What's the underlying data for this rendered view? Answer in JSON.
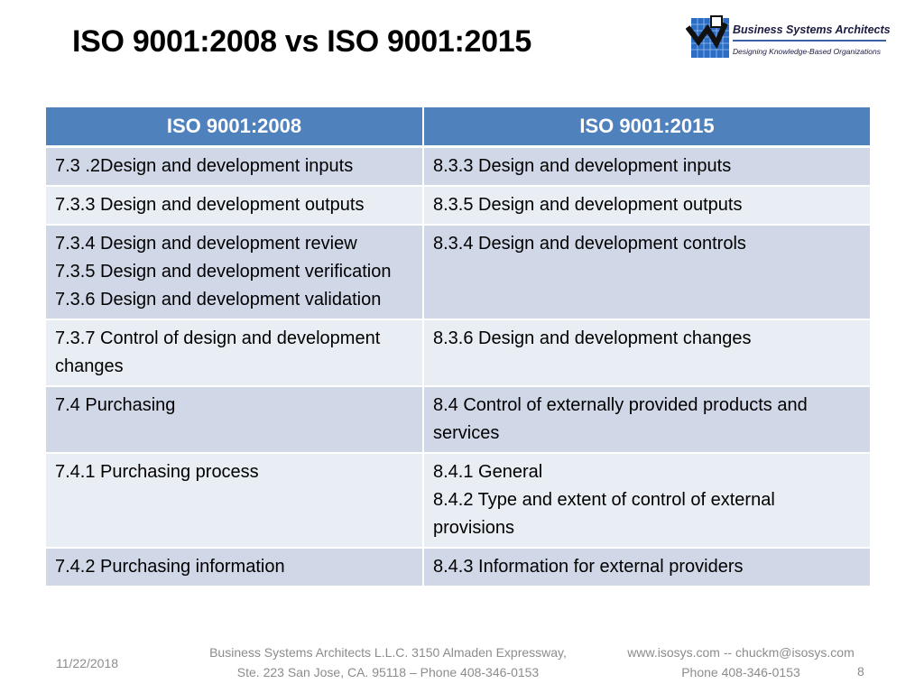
{
  "slide": {
    "title": "ISO 9001:2008 vs ISO 9001:2015"
  },
  "logo": {
    "name": "Business Systems Architects",
    "tagline": "Designing Knowledge-Based Organizations",
    "icon": "bsa-logo-icon"
  },
  "table": {
    "headers": [
      "ISO 9001:2008",
      "ISO 9001:2015"
    ],
    "rows": [
      {
        "left": [
          "7.3 .2Design and development inputs"
        ],
        "right": [
          "8.3.3 Design and development inputs"
        ]
      },
      {
        "left": [
          "7.3.3 Design and development outputs"
        ],
        "right": [
          "8.3.5 Design and development outputs"
        ]
      },
      {
        "left": [
          "7.3.4 Design and development review",
          "7.3.5 Design and development verification",
          "7.3.6 Design and development validation"
        ],
        "right": [
          "8.3.4 Design and development controls"
        ]
      },
      {
        "left": [
          "7.3.7 Control of design and development changes"
        ],
        "right": [
          "8.3.6 Design and development changes"
        ]
      },
      {
        "left": [
          "7.4 Purchasing"
        ],
        "right": [
          "8.4 Control of externally provided products and services"
        ]
      },
      {
        "left": [
          "7.4.1 Purchasing process"
        ],
        "right": [
          "8.4.1 General",
          "8.4.2 Type and extent of control of external provisions"
        ]
      },
      {
        "left": [
          "7.4.2 Purchasing information"
        ],
        "right": [
          "8.4.3 Information for external providers"
        ]
      }
    ]
  },
  "footer": {
    "date": "11/22/2018",
    "address_line1": "Business Systems Architects L.L.C. 3150 Almaden Expressway,",
    "address_line2": "Ste. 223 San Jose, CA. 95118 – Phone 408-346-0153",
    "contact_line1": "www.isosys.com  --  chuckm@isosys.com",
    "contact_line2": "Phone 408-346-0153",
    "page_number": "8"
  },
  "colors": {
    "header_bg": "#4f81bd",
    "row_dark": "#d0d8e8",
    "row_light": "#e9edf4",
    "footer_text": "#8c8c8c"
  }
}
